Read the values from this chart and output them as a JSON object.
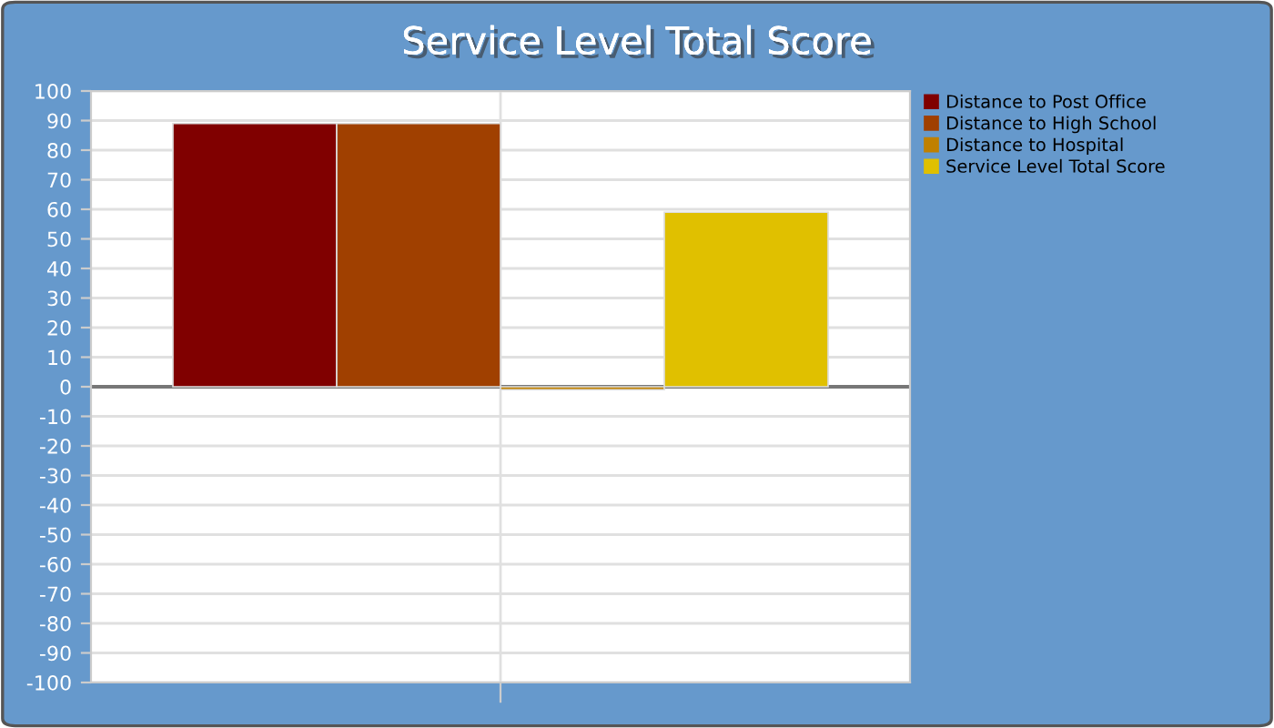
{
  "chart_data": {
    "type": "bar",
    "title": "Service Level Total Score",
    "categories": [
      null
    ],
    "series": [
      {
        "name": "Distance to Post Office",
        "color": "#800000",
        "values": [
          89
        ]
      },
      {
        "name": "Distance to High School",
        "color": "#a04000",
        "values": [
          89
        ]
      },
      {
        "name": "Distance to Hospital",
        "color": "#c08000",
        "values": [
          -1
        ]
      },
      {
        "name": "Service Level Total Score",
        "color": "#e0c000",
        "values": [
          59
        ]
      }
    ],
    "ylim": [
      -100,
      100
    ],
    "yticks": [
      -100,
      -90,
      -80,
      -70,
      -60,
      -50,
      -40,
      -30,
      -20,
      -10,
      0,
      10,
      20,
      30,
      40,
      50,
      60,
      70,
      80,
      90,
      100
    ],
    "grid": true,
    "legend": "top right"
  }
}
